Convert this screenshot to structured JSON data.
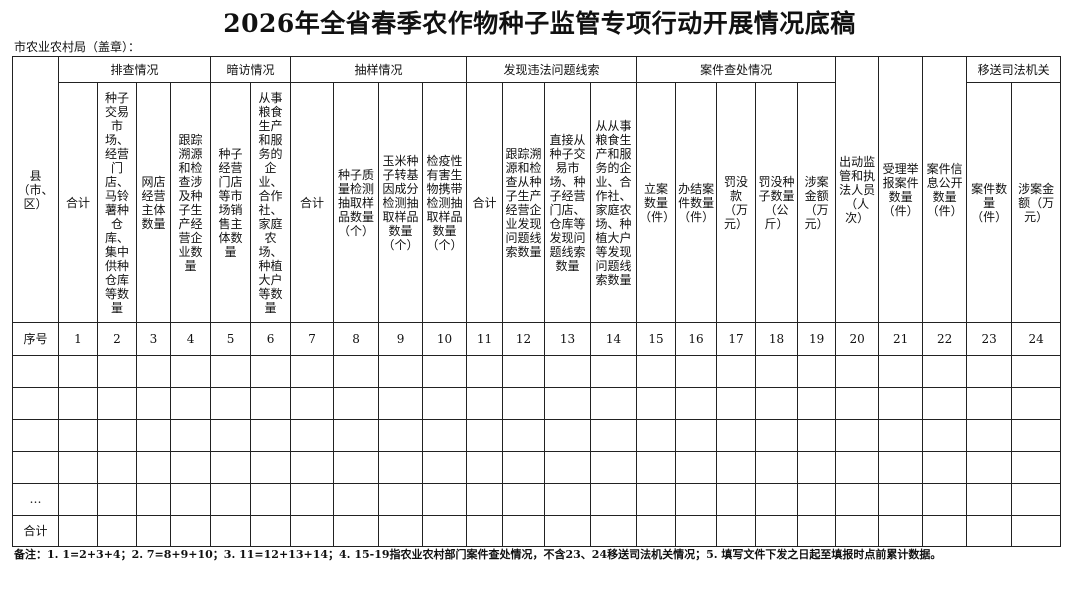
{
  "title": "2026年全省春季农作物种子监管专项行动开展情况底稿",
  "org_label": "市农业农村局（盖章）：",
  "table": {
    "county_header": "县（市、区）",
    "groups": [
      {
        "label": "排查情况",
        "columns": [
          "合计",
          "种子交易市场、经营门店、马铃薯种仓库、集中供种仓库等数量",
          "网店经营主体数量",
          "跟踪溯源和检查涉及种子生产经营企业数量"
        ]
      },
      {
        "label": "暗访情况",
        "columns": [
          "种子经营门店等市场销售主体数量",
          "从事粮食生产和服务的企业、合作社、家庭农场、种植大户等数量"
        ]
      },
      {
        "label": "抽样情况",
        "columns": [
          "合计",
          "种子质量检测抽取样品数量（个）",
          "玉米种子转基因成分检测抽取样品数量（个）",
          "检疫性有害生物携带检测抽取样品数量（个）"
        ]
      },
      {
        "label": "发现违法问题线索",
        "columns": [
          "合计",
          "跟踪溯源和检查从种子生产经营企业发现问题线索数量",
          "直接从种子交易市场、种子经营门店、仓库等发现问题线索数量",
          "从从事粮食生产和服务的企业、合作社、家庭农场、种植大户等发现问题线索数量"
        ]
      },
      {
        "label": "案件查处情况",
        "columns": [
          "立案数量（件）",
          "办结案件数量（件）",
          "罚没款（万元）",
          "罚没种子数量（公斤）",
          "涉案金额（万元）"
        ]
      }
    ],
    "single_columns": [
      "出动监管和执法人员（人次）",
      "受理举报案件数量（件）",
      "案件信息公开数量（件）"
    ],
    "last_group": {
      "label": "移送司法机关",
      "columns": [
        "案件数量（件）",
        "涉案金额（万元）"
      ]
    },
    "seq_label": "序号",
    "seq_numbers": [
      1,
      2,
      3,
      4,
      5,
      6,
      7,
      8,
      9,
      10,
      11,
      12,
      13,
      14,
      15,
      16,
      17,
      18,
      19,
      20,
      21,
      22,
      23,
      24
    ],
    "row_labels": [
      null,
      null,
      null,
      null,
      "…",
      "合计"
    ]
  },
  "footnote": "备注：1. 1=2+3+4；2. 7=8+9+10；3. 11=12+13+14；4. 15-19指农业农村部门案件查处情况，不含23、24移送司法机关情况；5. 填写文件下发之日起至填报时点前累计数据。"
}
